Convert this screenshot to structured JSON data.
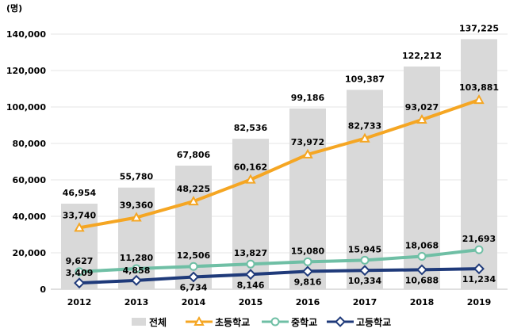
{
  "chart_data": {
    "type": "bar",
    "unit_label": "(명)",
    "categories": [
      "2012",
      "2013",
      "2014",
      "2015",
      "2016",
      "2017",
      "2018",
      "2019"
    ],
    "ylim": [
      0,
      140000
    ],
    "yticks": [
      0,
      20000,
      40000,
      60000,
      80000,
      100000,
      120000,
      140000
    ],
    "ytick_labels": [
      "0",
      "20,000",
      "40,000",
      "60,000",
      "80,000",
      "100,000",
      "120,000",
      "140,000"
    ],
    "legend_position": "bottom",
    "series": [
      {
        "name": "전체",
        "kind": "bar",
        "color": "#d9d9d9",
        "values": [
          46954,
          55780,
          67806,
          82536,
          99186,
          109387,
          122212,
          137225
        ],
        "labels": [
          "46,954",
          "55,780",
          "67,806",
          "82,536",
          "99,186",
          "109,387",
          "122,212",
          "137,225"
        ]
      },
      {
        "name": "초등학교",
        "kind": "line",
        "marker": "triangle",
        "color": "#f5a623",
        "values": [
          33740,
          39360,
          48225,
          60162,
          73972,
          82733,
          93027,
          103881
        ],
        "labels": [
          "33,740",
          "39,360",
          "48,225",
          "60,162",
          "73,972",
          "82,733",
          "93,027",
          "103,881"
        ]
      },
      {
        "name": "중학교",
        "kind": "line",
        "marker": "circle",
        "color": "#6fbfa5",
        "values": [
          9627,
          11280,
          12506,
          13827,
          15080,
          15945,
          18068,
          21693
        ],
        "labels": [
          "9,627",
          "11,280",
          "12,506",
          "13,827",
          "15,080",
          "15,945",
          "18,068",
          "21,693"
        ]
      },
      {
        "name": "고등학교",
        "kind": "line",
        "marker": "diamond",
        "color": "#1f3a7a",
        "values": [
          3409,
          4858,
          6734,
          8146,
          9816,
          10334,
          10688,
          11234
        ],
        "labels": [
          "3,409",
          "4,858",
          "6,734",
          "8,146",
          "9,816",
          "10,334",
          "10,688",
          "11,234"
        ]
      }
    ]
  }
}
